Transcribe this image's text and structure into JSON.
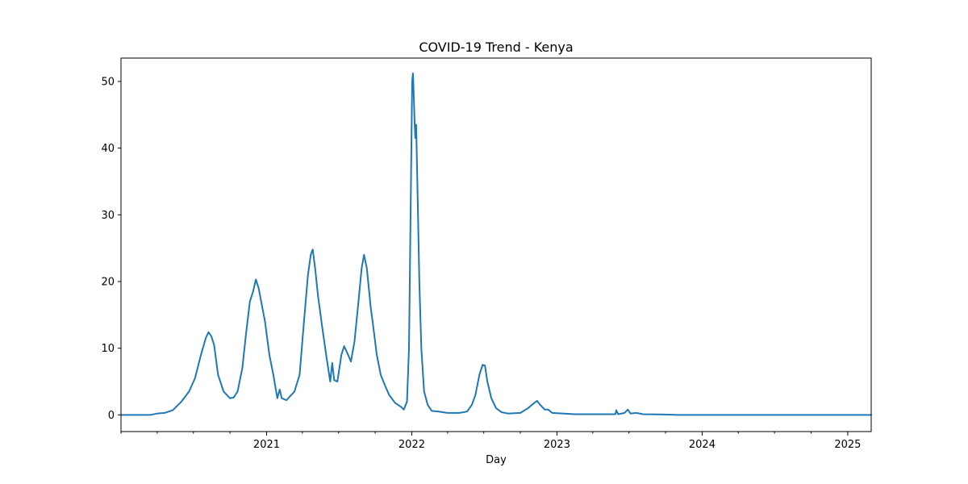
{
  "chart_data": {
    "type": "line",
    "title": "COVID-19 Trend - Kenya",
    "xlabel": "Day",
    "ylabel": "",
    "x_type": "date",
    "xlim": [
      "2020-01-01",
      "2025-03-01"
    ],
    "ylim": [
      -2.5,
      53.5
    ],
    "grid": false,
    "legend": "none",
    "y_ticks": [
      0,
      10,
      20,
      30,
      40,
      50
    ],
    "x_ticks": [
      {
        "label": "2021",
        "date": "2021-01-01"
      },
      {
        "label": "2022",
        "date": "2022-01-01"
      },
      {
        "label": "2023",
        "date": "2023-01-01"
      },
      {
        "label": "2024",
        "date": "2024-01-01"
      },
      {
        "label": "2025",
        "date": "2025-01-01"
      }
    ],
    "x_minor_ticks": [
      "2020-01-01",
      "2020-04-01",
      "2020-07-01",
      "2020-10-01",
      "2021-04-01",
      "2021-07-01",
      "2021-10-01",
      "2022-04-01",
      "2022-07-01",
      "2022-10-01",
      "2023-04-01",
      "2023-07-01",
      "2023-10-01",
      "2024-04-01",
      "2024-07-01",
      "2024-10-01"
    ],
    "series": [
      {
        "name": "",
        "color": "#1f77b4",
        "points": [
          [
            "2020-01-01",
            0.0
          ],
          [
            "2020-03-15",
            0.0
          ],
          [
            "2020-04-01",
            0.2
          ],
          [
            "2020-04-20",
            0.3
          ],
          [
            "2020-05-10",
            0.7
          ],
          [
            "2020-06-01",
            2.0
          ],
          [
            "2020-06-20",
            3.5
          ],
          [
            "2020-07-05",
            5.5
          ],
          [
            "2020-07-20",
            9.0
          ],
          [
            "2020-08-01",
            11.5
          ],
          [
            "2020-08-08",
            12.4
          ],
          [
            "2020-08-15",
            11.8
          ],
          [
            "2020-08-22",
            10.5
          ],
          [
            "2020-09-01",
            6.0
          ],
          [
            "2020-09-15",
            3.5
          ],
          [
            "2020-10-01",
            2.5
          ],
          [
            "2020-10-10",
            2.6
          ],
          [
            "2020-10-20",
            3.5
          ],
          [
            "2020-11-01",
            7.0
          ],
          [
            "2020-11-10",
            12.0
          ],
          [
            "2020-11-20",
            17.0
          ],
          [
            "2020-11-28",
            18.5
          ],
          [
            "2020-12-05",
            20.3
          ],
          [
            "2020-12-12",
            19.0
          ],
          [
            "2020-12-20",
            16.5
          ],
          [
            "2020-12-28",
            14.0
          ],
          [
            "2021-01-08",
            9.0
          ],
          [
            "2021-01-18",
            6.0
          ],
          [
            "2021-01-28",
            2.5
          ],
          [
            "2021-02-03",
            3.8
          ],
          [
            "2021-02-08",
            2.5
          ],
          [
            "2021-02-20",
            2.2
          ],
          [
            "2021-03-01",
            2.8
          ],
          [
            "2021-03-12",
            3.5
          ],
          [
            "2021-03-25",
            6.0
          ],
          [
            "2021-04-05",
            14.0
          ],
          [
            "2021-04-15",
            21.0
          ],
          [
            "2021-04-22",
            24.0
          ],
          [
            "2021-04-27",
            24.8
          ],
          [
            "2021-05-03",
            22.0
          ],
          [
            "2021-05-10",
            18.0
          ],
          [
            "2021-05-20",
            13.5
          ],
          [
            "2021-06-01",
            8.5
          ],
          [
            "2021-06-10",
            5.0
          ],
          [
            "2021-06-15",
            7.8
          ],
          [
            "2021-06-20",
            5.2
          ],
          [
            "2021-06-28",
            5.0
          ],
          [
            "2021-07-08",
            9.0
          ],
          [
            "2021-07-15",
            10.3
          ],
          [
            "2021-07-25",
            9.0
          ],
          [
            "2021-08-01",
            8.0
          ],
          [
            "2021-08-10",
            11.0
          ],
          [
            "2021-08-20",
            17.0
          ],
          [
            "2021-08-28",
            22.0
          ],
          [
            "2021-09-03",
            24.0
          ],
          [
            "2021-09-10",
            22.0
          ],
          [
            "2021-09-20",
            16.0
          ],
          [
            "2021-09-25",
            13.8
          ],
          [
            "2021-10-05",
            9.0
          ],
          [
            "2021-10-15",
            6.0
          ],
          [
            "2021-10-25",
            4.5
          ],
          [
            "2021-11-05",
            3.0
          ],
          [
            "2021-11-20",
            1.8
          ],
          [
            "2021-12-05",
            1.2
          ],
          [
            "2021-12-12",
            0.8
          ],
          [
            "2021-12-20",
            2.0
          ],
          [
            "2021-12-25",
            10.0
          ],
          [
            "2021-12-30",
            35.0
          ],
          [
            "2022-01-02",
            50.0
          ],
          [
            "2022-01-04",
            51.2
          ],
          [
            "2022-01-06",
            48.0
          ],
          [
            "2022-01-08",
            44.0
          ],
          [
            "2022-01-10",
            41.5
          ],
          [
            "2022-01-12",
            43.5
          ],
          [
            "2022-01-15",
            35.0
          ],
          [
            "2022-01-20",
            20.0
          ],
          [
            "2022-01-25",
            10.0
          ],
          [
            "2022-02-01",
            3.5
          ],
          [
            "2022-02-10",
            1.5
          ],
          [
            "2022-02-20",
            0.6
          ],
          [
            "2022-03-10",
            0.5
          ],
          [
            "2022-04-01",
            0.3
          ],
          [
            "2022-05-01",
            0.3
          ],
          [
            "2022-05-20",
            0.5
          ],
          [
            "2022-06-01",
            1.5
          ],
          [
            "2022-06-10",
            3.0
          ],
          [
            "2022-06-20",
            6.0
          ],
          [
            "2022-06-28",
            7.5
          ],
          [
            "2022-07-04",
            7.4
          ],
          [
            "2022-07-10",
            5.0
          ],
          [
            "2022-07-20",
            2.5
          ],
          [
            "2022-08-01",
            1.0
          ],
          [
            "2022-08-15",
            0.4
          ],
          [
            "2022-09-01",
            0.2
          ],
          [
            "2022-10-01",
            0.3
          ],
          [
            "2022-10-20",
            1.0
          ],
          [
            "2022-11-05",
            1.8
          ],
          [
            "2022-11-12",
            2.1
          ],
          [
            "2022-11-20",
            1.5
          ],
          [
            "2022-12-01",
            0.8
          ],
          [
            "2022-12-10",
            0.8
          ],
          [
            "2022-12-20",
            0.3
          ],
          [
            "2023-01-15",
            0.2
          ],
          [
            "2023-02-15",
            0.1
          ],
          [
            "2023-05-01",
            0.1
          ],
          [
            "2023-05-28",
            0.1
          ],
          [
            "2023-05-30",
            0.7
          ],
          [
            "2023-06-04",
            0.1
          ],
          [
            "2023-06-20",
            0.3
          ],
          [
            "2023-06-28",
            0.8
          ],
          [
            "2023-07-05",
            0.2
          ],
          [
            "2023-07-20",
            0.3
          ],
          [
            "2023-08-05",
            0.1
          ],
          [
            "2023-10-01",
            0.05
          ],
          [
            "2023-11-01",
            0.0
          ],
          [
            "2025-03-01",
            0.0
          ]
        ]
      }
    ]
  }
}
